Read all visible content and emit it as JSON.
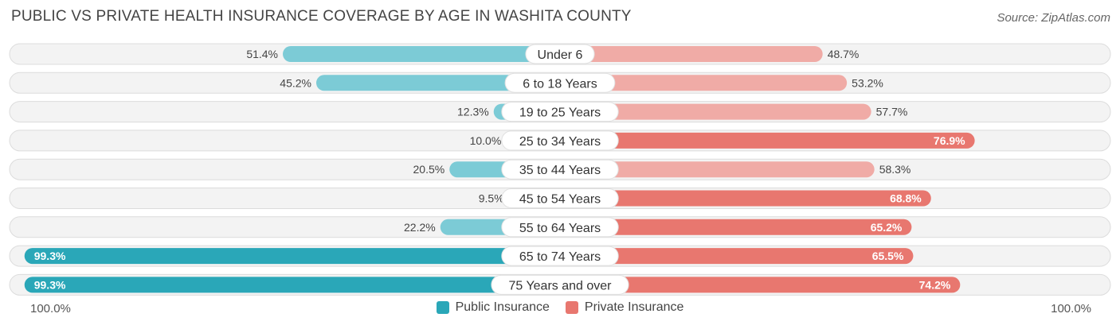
{
  "title": "PUBLIC VS PRIVATE HEALTH INSURANCE COVERAGE BY AGE IN WASHITA COUNTY",
  "source": "Source: ZipAtlas.com",
  "axis": {
    "left_label": "100.0%",
    "right_label": "100.0%"
  },
  "legend": {
    "public_label": "Public Insurance",
    "private_label": "Private Insurance"
  },
  "colors": {
    "public_dark": "#2aa7b8",
    "public_light": "#7ccbd6",
    "private_dark": "#e8776f",
    "private_light": "#f0aba6",
    "track": "#f2f2f2"
  },
  "chart_data": {
    "type": "bar",
    "orientation": "diverging-horizontal",
    "categories": [
      "Under 6",
      "6 to 18 Years",
      "19 to 25 Years",
      "25 to 34 Years",
      "35 to 44 Years",
      "45 to 54 Years",
      "55 to 64 Years",
      "65 to 74 Years",
      "75 Years and over"
    ],
    "series": [
      {
        "name": "Public Insurance",
        "values": [
          51.4,
          45.2,
          12.3,
          10.0,
          20.5,
          9.5,
          22.2,
          99.3,
          99.3
        ],
        "labels": [
          "51.4%",
          "45.2%",
          "12.3%",
          "10.0%",
          "20.5%",
          "9.5%",
          "22.2%",
          "99.3%",
          "99.3%"
        ]
      },
      {
        "name": "Private Insurance",
        "values": [
          48.7,
          53.2,
          57.7,
          76.9,
          58.3,
          68.8,
          65.2,
          65.5,
          74.2
        ],
        "labels": [
          "48.7%",
          "53.2%",
          "57.7%",
          "76.9%",
          "58.3%",
          "68.8%",
          "65.2%",
          "65.5%",
          "74.2%"
        ]
      }
    ],
    "xlim": [
      -100,
      100
    ]
  }
}
